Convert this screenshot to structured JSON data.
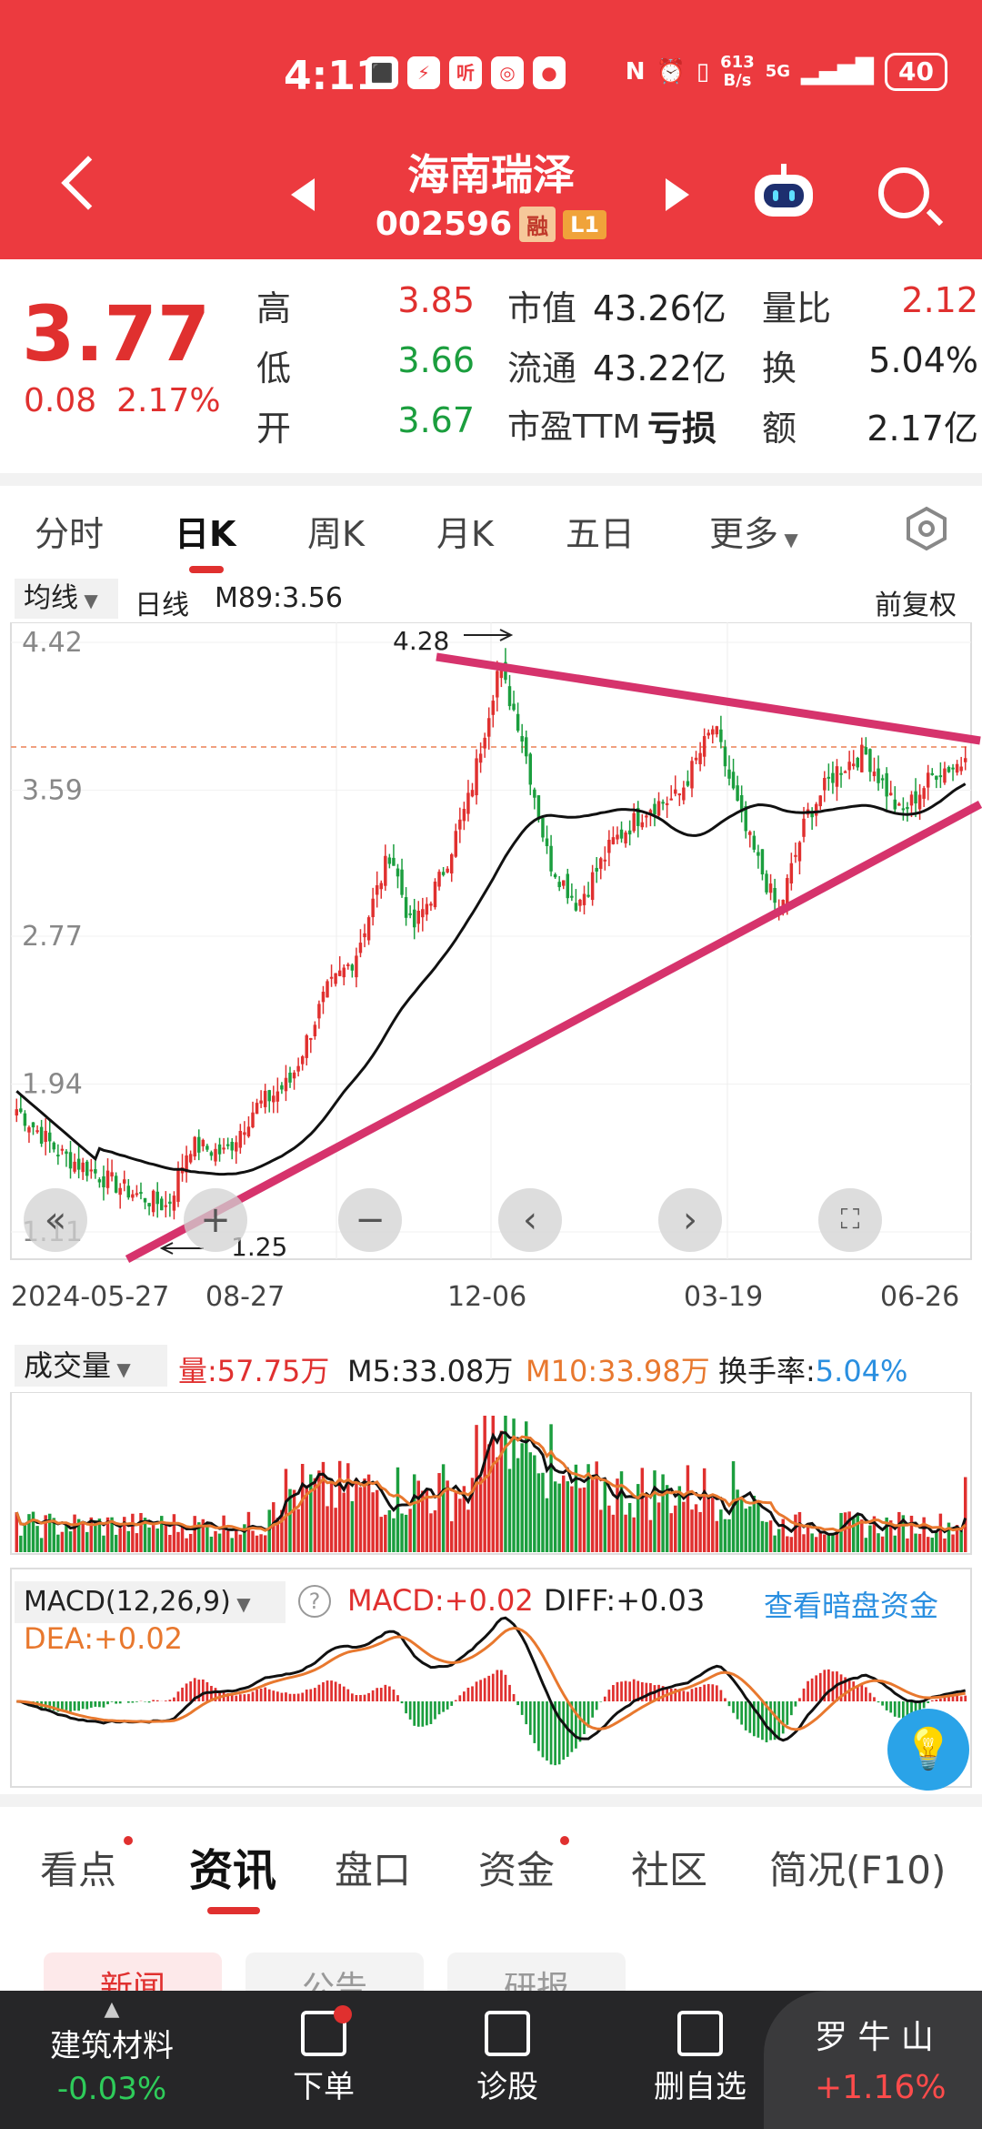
{
  "status": {
    "time": "4:11",
    "net_rate_value": "613",
    "net_rate_unit": "B/s",
    "net_type": "5G",
    "battery": "40"
  },
  "header": {
    "stock_name": "海南瑞泽",
    "stock_code": "002596",
    "badge_margin": "融",
    "badge_level": "L1"
  },
  "quote": {
    "price": "3.77",
    "change": "0.08",
    "change_pct": "2.17%",
    "high_label": "高",
    "high": "3.85",
    "low_label": "低",
    "low": "3.66",
    "open_label": "开",
    "open": "3.67",
    "mcap_label": "市值",
    "mcap": "43.26亿",
    "float_label": "流通",
    "float": "43.22亿",
    "pe_label": "市盈TTM",
    "pe": "亏损",
    "vol_ratio_label": "量比",
    "vol_ratio": "2.12",
    "turnover_label": "换",
    "turnover": "5.04%",
    "amount_label": "额",
    "amount": "2.17亿"
  },
  "tabs": [
    "分时",
    "日K",
    "周K",
    "月K",
    "五日",
    "更多"
  ],
  "chart_header": {
    "ma_select": "均线",
    "period": "日线",
    "ma89": "M89:3.56",
    "adjust": "前复权"
  },
  "chart_data": {
    "type": "candlestick",
    "y_ticks": [
      "4.42",
      "3.59",
      "2.77",
      "1.94",
      "1.11"
    ],
    "ylim": [
      1.11,
      4.42
    ],
    "x_labels": [
      "2024-05-27",
      "08-27",
      "12-06",
      "03-19",
      "06-26"
    ],
    "annotations": [
      {
        "text": "4.28",
        "kind": "high-marker"
      },
      {
        "text": "1.25",
        "kind": "low-marker"
      }
    ],
    "last_price": 3.77,
    "trend_lines": [
      {
        "name": "upper",
        "from": [
          "12-06",
          4.28
        ],
        "to": [
          "06-26",
          3.8
        ]
      },
      {
        "name": "lower",
        "from": [
          "08-27",
          1.25
        ],
        "to": [
          "06-26",
          3.5
        ]
      }
    ],
    "colors": {
      "up": "#e0302f",
      "down": "#1b9e3e",
      "trend": "#d6336c",
      "ma": "#111111"
    }
  },
  "volume": {
    "select": "成交量",
    "vol_label": "量:",
    "vol": "57.75万",
    "m5": "M5:33.08万",
    "m10": "M10:33.98万",
    "turn_label": "换手率:",
    "turn": "5.04%"
  },
  "macd": {
    "select": "MACD(12,26,9)",
    "macd": "MACD:+0.02",
    "diff": "DIFF:+0.03",
    "link": "查看暗盘资金",
    "dea": "DEA:+0.02"
  },
  "info_tabs": [
    "看点",
    "资讯",
    "盘口",
    "资金",
    "社区",
    "简况(F10)"
  ],
  "info_chips": [
    "新闻",
    "公告",
    "研报"
  ],
  "bottom": {
    "sector_name": "建筑材料",
    "sector_change": "-0.03%",
    "order": "下单",
    "diagnose": "诊股",
    "remove": "删自选",
    "index_name": "罗 牛 山",
    "index_change": "+1.16%"
  }
}
